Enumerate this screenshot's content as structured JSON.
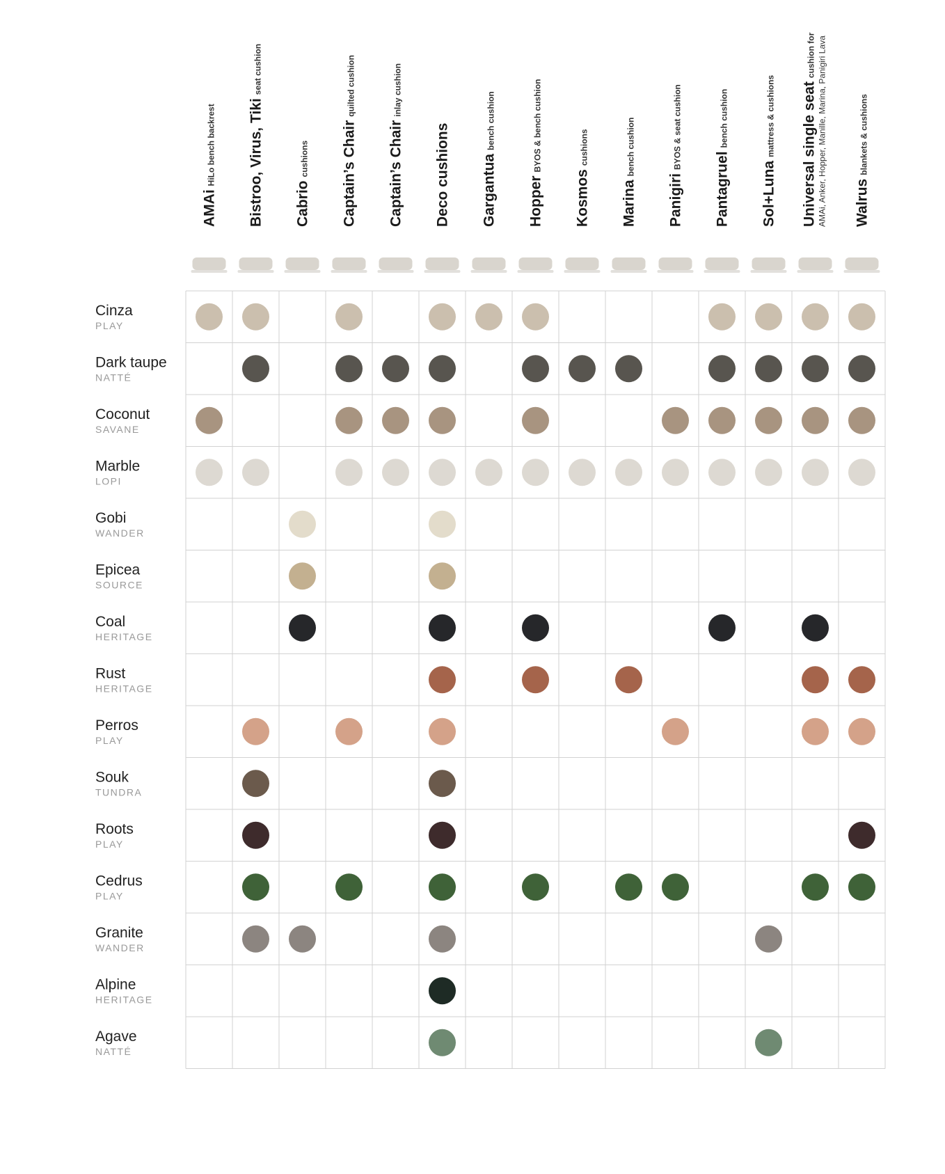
{
  "columns": [
    {
      "name": "AMAi",
      "sub": "HiLo bench backrest"
    },
    {
      "name": "Bistroo, Virus, Tiki",
      "sub": "seat cushion"
    },
    {
      "name": "Cabrio",
      "sub": "cushions"
    },
    {
      "name": "Captain’s Chair",
      "sub": "quilted cushion"
    },
    {
      "name": "Captain’s Chair",
      "sub": "inlay cushion"
    },
    {
      "name": "Deco cushions"
    },
    {
      "name": "Gargantua",
      "sub": "bench cushion"
    },
    {
      "name": "Hopper",
      "sub": "BYOS & bench cushion"
    },
    {
      "name": "Kosmos",
      "sub": "cushions"
    },
    {
      "name": "Marina",
      "sub": "bench cushion"
    },
    {
      "name": "Panigiri",
      "sub": "BYOS & seat cushion"
    },
    {
      "name": "Pantagruel",
      "sub": "bench cushion"
    },
    {
      "name": "Sol+Luna",
      "sub": "mattress & cushions"
    },
    {
      "name": "Universal single seat",
      "sub": "cushion for",
      "sub2": "AMAi, Anker, Hopper, Manille, Marina, Panigiri Lava"
    },
    {
      "name": "Walrus",
      "sub": "blankets & cushions"
    }
  ],
  "rows": [
    {
      "name": "Cinza",
      "collection": "PLAY",
      "color": "#cbbfae",
      "cells": [
        true,
        true,
        false,
        true,
        false,
        true,
        true,
        true,
        false,
        false,
        false,
        true,
        true,
        true,
        true
      ]
    },
    {
      "name": "Dark taupe",
      "collection": "NATTÉ",
      "color": "#58554f",
      "cells": [
        false,
        true,
        false,
        true,
        true,
        true,
        false,
        true,
        true,
        true,
        false,
        true,
        true,
        true,
        true
      ]
    },
    {
      "name": "Coconut",
      "collection": "SAVANE",
      "color": "#a89480",
      "cells": [
        true,
        false,
        false,
        true,
        true,
        true,
        false,
        true,
        false,
        false,
        true,
        true,
        true,
        true,
        true
      ]
    },
    {
      "name": "Marble",
      "collection": "LOPI",
      "color": "#ddd9d2",
      "cells": [
        true,
        true,
        false,
        true,
        true,
        true,
        true,
        true,
        true,
        true,
        true,
        true,
        true,
        true,
        true
      ]
    },
    {
      "name": "Gobi",
      "collection": "WANDER",
      "color": "#e3dccb",
      "cells": [
        false,
        false,
        true,
        false,
        false,
        true,
        false,
        false,
        false,
        false,
        false,
        false,
        false,
        false,
        false
      ]
    },
    {
      "name": "Epicea",
      "collection": "SOURCE",
      "color": "#c3b090",
      "cells": [
        false,
        false,
        true,
        false,
        false,
        true,
        false,
        false,
        false,
        false,
        false,
        false,
        false,
        false,
        false
      ]
    },
    {
      "name": "Coal",
      "collection": "HERITAGE",
      "color": "#26272a",
      "cells": [
        false,
        false,
        true,
        false,
        false,
        true,
        false,
        true,
        false,
        false,
        false,
        true,
        false,
        true,
        false
      ]
    },
    {
      "name": "Rust",
      "collection": "HERITAGE",
      "color": "#a5644b",
      "cells": [
        false,
        false,
        false,
        false,
        false,
        true,
        false,
        true,
        false,
        true,
        false,
        false,
        false,
        true,
        true
      ]
    },
    {
      "name": "Perros",
      "collection": "PLAY",
      "color": "#d4a289",
      "cells": [
        false,
        true,
        false,
        true,
        false,
        true,
        false,
        false,
        false,
        false,
        true,
        false,
        false,
        true,
        true
      ]
    },
    {
      "name": "Souk",
      "collection": "TUNDRA",
      "color": "#6b5a4c",
      "cells": [
        false,
        true,
        false,
        false,
        false,
        true,
        false,
        false,
        false,
        false,
        false,
        false,
        false,
        false,
        false
      ]
    },
    {
      "name": "Roots",
      "collection": "PLAY",
      "color": "#3e2b2c",
      "cells": [
        false,
        true,
        false,
        false,
        false,
        true,
        false,
        false,
        false,
        false,
        false,
        false,
        false,
        false,
        true
      ]
    },
    {
      "name": "Cedrus",
      "collection": "PLAY",
      "color": "#3f6238",
      "cells": [
        false,
        true,
        false,
        true,
        false,
        true,
        false,
        true,
        false,
        true,
        true,
        false,
        false,
        true,
        true
      ]
    },
    {
      "name": "Granite",
      "collection": "WANDER",
      "color": "#8c8580",
      "cells": [
        false,
        true,
        true,
        false,
        false,
        true,
        false,
        false,
        false,
        false,
        false,
        false,
        true,
        false,
        false
      ]
    },
    {
      "name": "Alpine",
      "collection": "HERITAGE",
      "color": "#1e2b25",
      "cells": [
        false,
        false,
        false,
        false,
        false,
        true,
        false,
        false,
        false,
        false,
        false,
        false,
        false,
        false,
        false
      ]
    },
    {
      "name": "Agave",
      "collection": "NATTÉ",
      "color": "#6f8a72",
      "cells": [
        false,
        false,
        false,
        false,
        false,
        true,
        false,
        false,
        false,
        false,
        false,
        false,
        true,
        false,
        false
      ]
    }
  ]
}
